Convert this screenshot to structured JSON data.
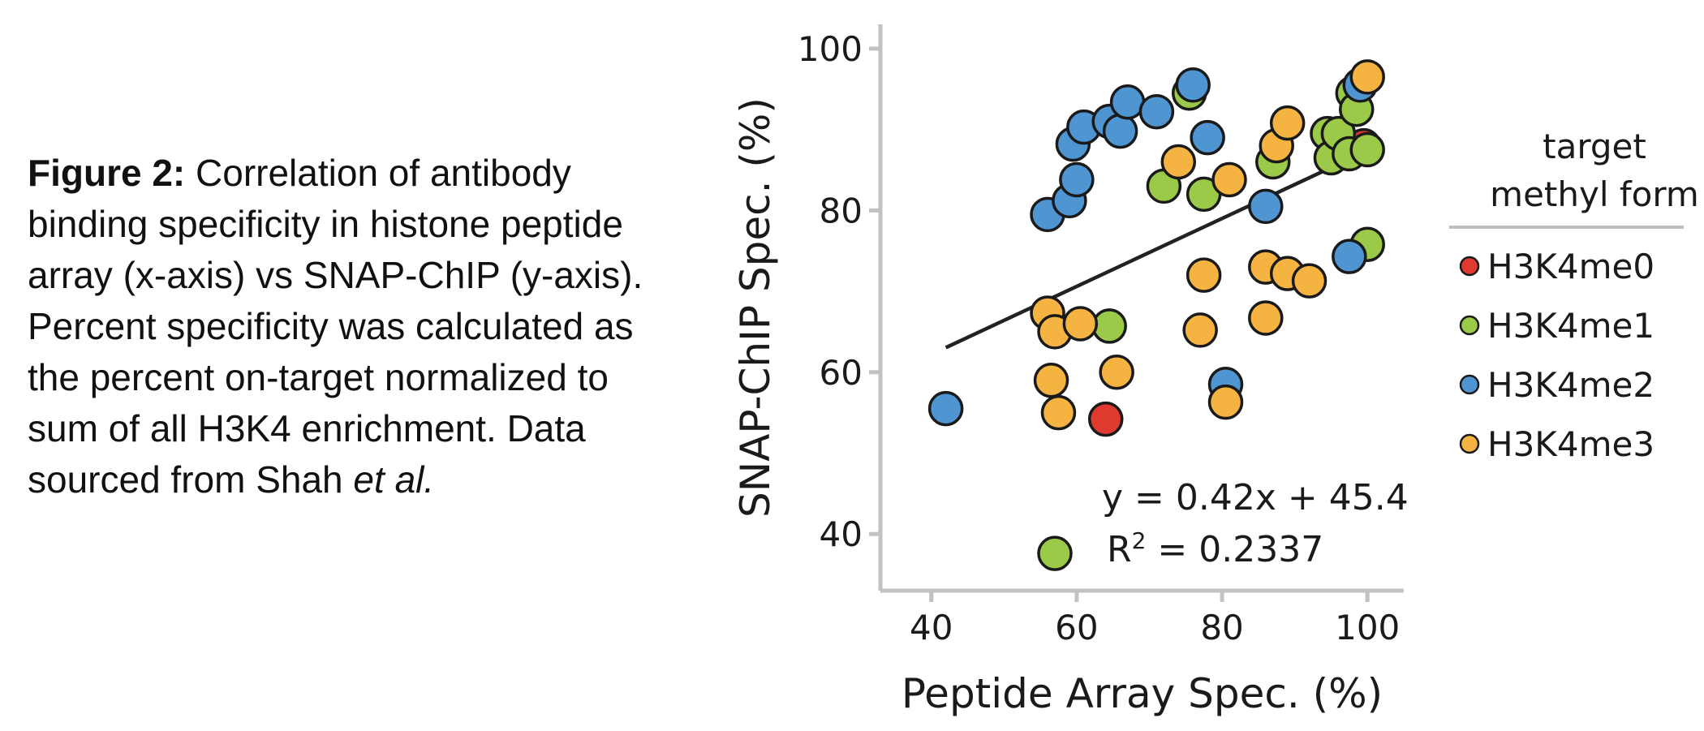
{
  "caption": {
    "label": "Figure 2:",
    "text": " Correlation of antibody binding specificity in histone peptide array (x-axis) vs SNAP-ChIP (y-axis). Percent specificity was calculated as the percent on-target normalized to sum of all H3K4 enrichment. Data sourced from Shah ",
    "italic": "et al."
  },
  "chart_data": {
    "type": "scatter",
    "xlabel": "Peptide Array Spec. (%)",
    "ylabel": "SNAP-ChIP Spec. (%)",
    "xlim": [
      33,
      105
    ],
    "ylim": [
      33,
      103
    ],
    "xticks": [
      40,
      60,
      80,
      100
    ],
    "yticks": [
      40,
      60,
      80,
      100
    ],
    "grid": false,
    "legend": {
      "title_line1": "target",
      "title_line2": "methyl form",
      "placement": "right"
    },
    "regression": {
      "equation": "y = 0.42x + 45.4",
      "r2_label": "R",
      "r2_sup": "2",
      "r2_value": " = 0.2337",
      "x_range": [
        42,
        100
      ],
      "slope": 0.42,
      "intercept": 45.4,
      "color": "#222222"
    },
    "series": [
      {
        "name": "H3K4me0",
        "color": "#e03a2f",
        "points": [
          [
            64,
            54.2
          ],
          [
            99.5,
            88
          ]
        ]
      },
      {
        "name": "H3K4me1",
        "color": "#9bc948",
        "points": [
          [
            57,
            37.6
          ],
          [
            64.5,
            65.7
          ],
          [
            72,
            83
          ],
          [
            75.5,
            94.5
          ],
          [
            77.5,
            82
          ],
          [
            87,
            86
          ],
          [
            94.5,
            89.5
          ],
          [
            95,
            86.5
          ],
          [
            96,
            89.5
          ],
          [
            97.5,
            87
          ],
          [
            98,
            94.5
          ],
          [
            98.5,
            92.5
          ],
          [
            100,
            87.5
          ],
          [
            100,
            75.8
          ]
        ]
      },
      {
        "name": "H3K4me2",
        "color": "#4f95d2",
        "points": [
          [
            42,
            55.5
          ],
          [
            56,
            79.5
          ],
          [
            59,
            81.2
          ],
          [
            60,
            83.8
          ],
          [
            59.5,
            88.2
          ],
          [
            61,
            90.3
          ],
          [
            64.5,
            91
          ],
          [
            66,
            89.8
          ],
          [
            67,
            93.4
          ],
          [
            71,
            92.2
          ],
          [
            76,
            95.5
          ],
          [
            78,
            89
          ],
          [
            80.5,
            58.5
          ],
          [
            86,
            80.5
          ],
          [
            97.5,
            74.3
          ],
          [
            99,
            95.5
          ]
        ]
      },
      {
        "name": "H3K4me3",
        "color": "#f5b441",
        "points": [
          [
            56,
            67.3
          ],
          [
            57,
            65
          ],
          [
            56.5,
            59
          ],
          [
            57.5,
            55
          ],
          [
            60.5,
            66
          ],
          [
            65.5,
            60
          ],
          [
            74,
            86
          ],
          [
            77.5,
            72
          ],
          [
            77,
            65.2
          ],
          [
            81,
            83.8
          ],
          [
            80.5,
            56.3
          ],
          [
            87.5,
            88
          ],
          [
            89,
            90.8
          ],
          [
            86,
            73
          ],
          [
            89,
            72.2
          ],
          [
            92,
            71.3
          ],
          [
            86,
            66.7
          ],
          [
            100,
            96.5
          ]
        ]
      }
    ]
  }
}
